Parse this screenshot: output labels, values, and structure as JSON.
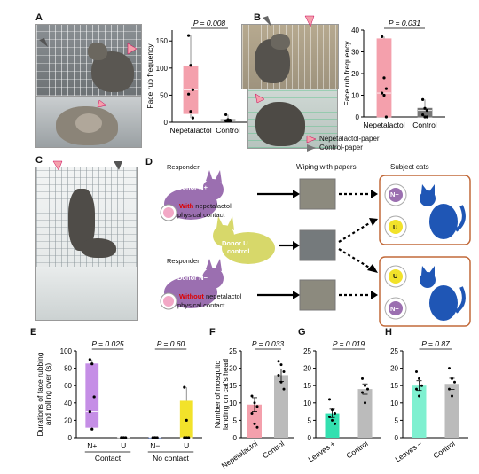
{
  "panels": {
    "A": "A",
    "B": "B",
    "C": "C",
    "D": "D",
    "E": "E",
    "F": "F",
    "G": "G",
    "H": "H"
  },
  "legend_b": {
    "nep": "Nepetalactol-paper",
    "ctrl": "Control-paper",
    "nep_color": "#f4a0ac",
    "ctrl_color": "#777777"
  },
  "panelD": {
    "responder_top": "Responder",
    "donor_nplus": "Donor N+",
    "with_word": "With",
    "with_rest": "nepetalactol",
    "physical_contact_top": "physical contact",
    "donor_u": "Donor U",
    "control_word": "control",
    "responder_bottom": "Responder",
    "donor_nminus": "Donor N−",
    "without_word": "Without",
    "without_rest": "nepetalactol",
    "physical_contact_bottom": "physical contact",
    "wiping_header": "Wiping with papers",
    "subject_header": "Subject cats",
    "dish_top_1": "N+",
    "dish_top_2": "U",
    "dish_bot_1": "U",
    "dish_bot_2": "N−",
    "purple": "#9b6fb0",
    "yellow_green": "#d7d86a",
    "cat_blue": "#1f56b5",
    "box_orange": "#c26a3a"
  },
  "chart_data": [
    {
      "panel": "A",
      "type": "box",
      "ylabel": "Face rub frequency",
      "ylim": [
        0,
        170
      ],
      "yticks": [
        0,
        50,
        100,
        150
      ],
      "categories": [
        "Nepetalactol",
        "Control"
      ],
      "pvalue": "P = 0.008",
      "boxes": [
        {
          "q1": 16,
          "median": 60,
          "q3": 104,
          "min": 8,
          "max": 160,
          "color": "#f4a0ac",
          "points": [
            160,
            105,
            60,
            52,
            20,
            8
          ]
        },
        {
          "q1": 3,
          "median": 4,
          "q3": 5,
          "min": 2,
          "max": 14,
          "color": "#888888",
          "points": [
            14,
            5,
            4,
            3,
            2,
            2
          ]
        }
      ]
    },
    {
      "panel": "B",
      "type": "box",
      "ylabel": "Face rub frequency",
      "ylim": [
        0,
        40
      ],
      "yticks": [
        0,
        10,
        20,
        30,
        40
      ],
      "categories": [
        "Nepetalactol",
        "Control"
      ],
      "pvalue": "P = 0.031",
      "boxes": [
        {
          "q1": 0,
          "median": 11,
          "q3": 36,
          "min": 0,
          "max": 37,
          "color": "#f4a0ac",
          "points": [
            37,
            18,
            13,
            11,
            10,
            0
          ]
        },
        {
          "q1": 0,
          "median": 3,
          "q3": 4,
          "min": 0,
          "max": 8,
          "color": "#777777",
          "points": [
            8,
            4,
            3,
            1,
            0,
            0
          ]
        }
      ]
    },
    {
      "panel": "E",
      "type": "box",
      "ylabel": "Durations of face rubbing and rolling over (s)",
      "ylim": [
        0,
        100
      ],
      "yticks": [
        0,
        20,
        40,
        60,
        80,
        100
      ],
      "categories": [
        "N+",
        "U",
        "N−",
        "U"
      ],
      "groups": [
        "Contact",
        "No contact"
      ],
      "pvalues": [
        "P = 0.025",
        "P = 0.60"
      ],
      "boxes": [
        {
          "q1": 12,
          "median": 30,
          "q3": 85,
          "min": 10,
          "max": 90,
          "color": "#c58ee6",
          "points": [
            90,
            85,
            47,
            30,
            10
          ]
        },
        {
          "q1": 0,
          "median": 0,
          "q3": 0,
          "min": 0,
          "max": 0,
          "color": "#777777",
          "points": [
            0,
            0,
            0,
            0,
            0
          ]
        },
        {
          "q1": 0,
          "median": 0,
          "q3": 0,
          "min": 0,
          "max": 0,
          "color": "#3355aa",
          "points": [
            0,
            0,
            0,
            0,
            0
          ]
        },
        {
          "q1": 0,
          "median": 0,
          "q3": 42,
          "min": 0,
          "max": 58,
          "color": "#f2e22a",
          "points": [
            58,
            20,
            0,
            0,
            0
          ]
        }
      ]
    },
    {
      "panel": "F",
      "type": "bar",
      "ylabel": "Number of mosquito landing on cat's head",
      "ylim": [
        0,
        25
      ],
      "yticks": [
        0,
        5,
        10,
        15,
        20,
        25
      ],
      "categories": [
        "Nepetalactol",
        "Control"
      ],
      "pvalue": "P = 0.033",
      "values": [
        9.5,
        18.0
      ],
      "errors": [
        2.0,
        1.8
      ],
      "colors": [
        "#f4a0ac",
        "#bbbbbb"
      ],
      "points": [
        [
          12,
          10,
          9,
          7,
          4,
          3
        ],
        [
          22,
          21,
          19,
          18,
          16,
          14
        ]
      ]
    },
    {
      "panel": "G",
      "type": "bar",
      "ylabel": "",
      "ylim": [
        0,
        25
      ],
      "yticks": [
        0,
        5,
        10,
        15,
        20,
        25
      ],
      "categories": [
        "Leaves +",
        "Control"
      ],
      "pvalue": "P = 0.019",
      "values": [
        7.0,
        14.0
      ],
      "errors": [
        1.2,
        1.5
      ],
      "colors": [
        "#33e0b0",
        "#bbbbbb"
      ],
      "points": [
        [
          11,
          8,
          7,
          6,
          5,
          4
        ],
        [
          17,
          15,
          14,
          13,
          10
        ]
      ]
    },
    {
      "panel": "H",
      "type": "bar",
      "ylabel": "",
      "ylim": [
        0,
        25
      ],
      "yticks": [
        0,
        5,
        10,
        15,
        20,
        25
      ],
      "categories": [
        "Leaves −",
        "Control"
      ],
      "pvalue": "P = 0.87",
      "values": [
        15.0,
        15.5
      ],
      "errors": [
        1.4,
        1.6
      ],
      "colors": [
        "#7ff0d0",
        "#bbbbbb"
      ],
      "points": [
        [
          19,
          17,
          15,
          14,
          12
        ],
        [
          20,
          17,
          16,
          14,
          12
        ]
      ]
    }
  ]
}
